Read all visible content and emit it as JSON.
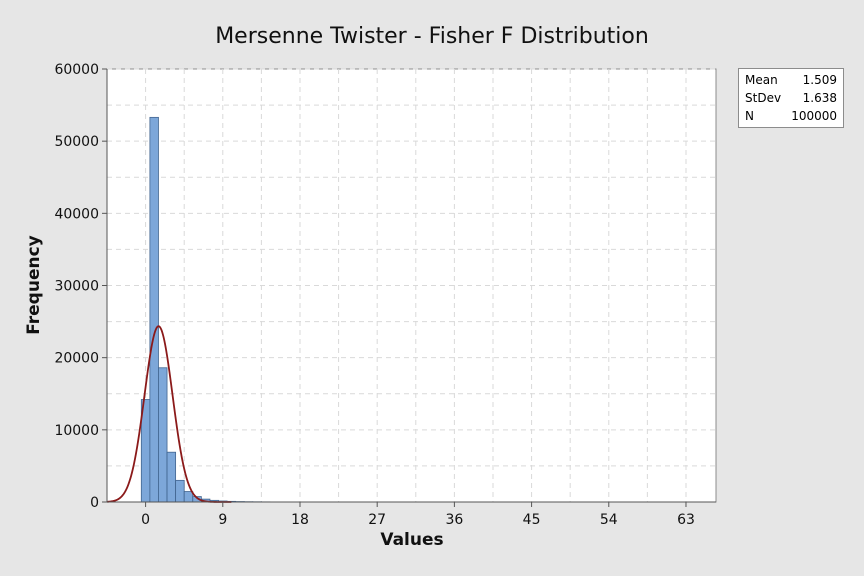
{
  "chart_data": {
    "type": "bar",
    "title": "Mersenne Twister - Fisher F Distribution",
    "xlabel": "Values",
    "ylabel": "Frequency",
    "xlim": [
      -4.5,
      66.5
    ],
    "ylim": [
      0,
      60000
    ],
    "x_ticks": [
      0,
      9,
      18,
      27,
      36,
      45,
      54,
      63
    ],
    "y_ticks": [
      0,
      10000,
      20000,
      30000,
      40000,
      50000,
      60000
    ],
    "grid": true,
    "bin_width": 1,
    "bins": [
      {
        "x": 0,
        "value": 14200
      },
      {
        "x": 1,
        "value": 53300
      },
      {
        "x": 2,
        "value": 18600
      },
      {
        "x": 3,
        "value": 6900
      },
      {
        "x": 4,
        "value": 3000
      },
      {
        "x": 5,
        "value": 1450
      },
      {
        "x": 6,
        "value": 750
      },
      {
        "x": 7,
        "value": 400
      },
      {
        "x": 8,
        "value": 230
      },
      {
        "x": 9,
        "value": 140
      },
      {
        "x": 10,
        "value": 90
      },
      {
        "x": 11,
        "value": 60
      },
      {
        "x": 12,
        "value": 40
      },
      {
        "x": 13,
        "value": 30
      },
      {
        "x": 14,
        "value": 20
      }
    ],
    "fit_curve": {
      "type": "normal",
      "mean": 1.509,
      "stdev": 1.638,
      "n": 100000,
      "color": "#8b1a1a"
    },
    "bar_color": "#7da7d9",
    "bar_edge_color": "#41648f"
  },
  "stats": [
    {
      "label": "Mean",
      "value": "1.509"
    },
    {
      "label": "StDev",
      "value": "1.638"
    },
    {
      "label": "N",
      "value": "100000"
    }
  ]
}
